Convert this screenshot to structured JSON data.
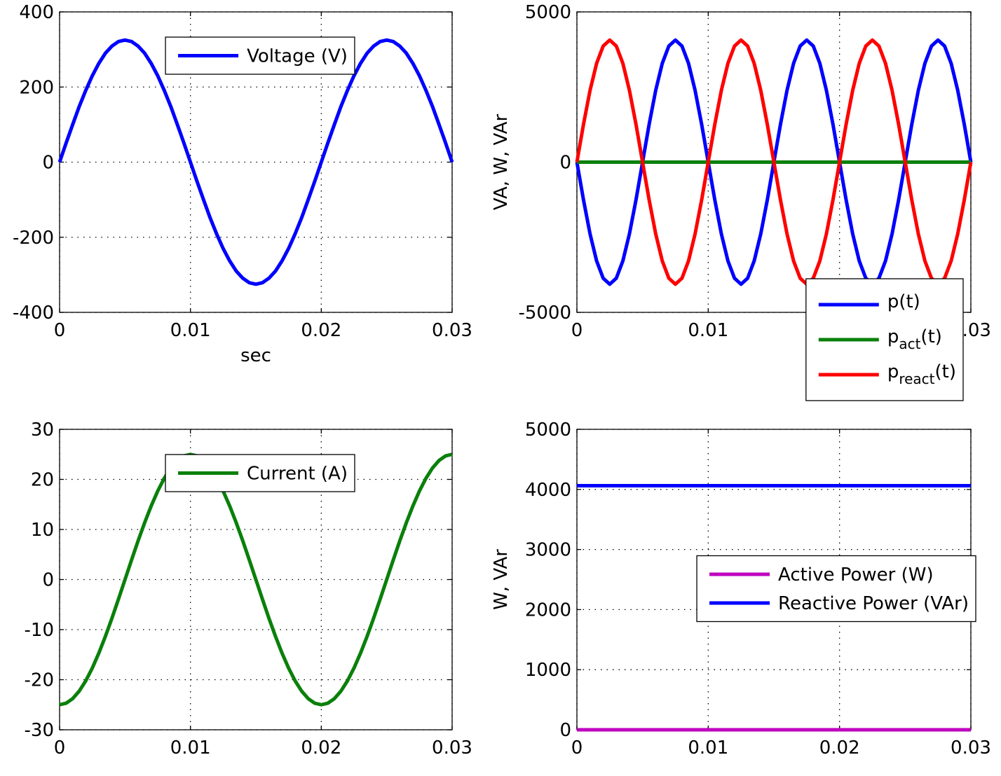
{
  "chart_data": [
    {
      "type": "line",
      "xlabel": "sec",
      "legend": "north",
      "grid": true,
      "xlim": [
        0,
        0.03
      ],
      "xticks": [
        0,
        0.01,
        0.02,
        0.03
      ],
      "ylim": [
        -400,
        400
      ],
      "yticks": [
        -400,
        -200,
        0,
        200,
        400
      ],
      "x": [
        0,
        0.0005,
        0.001,
        0.0015,
        0.002,
        0.0025,
        0.003,
        0.0035,
        0.004,
        0.0045,
        0.005,
        0.0055,
        0.006,
        0.0065,
        0.007,
        0.0075,
        0.008,
        0.0085,
        0.009,
        0.0095,
        0.01,
        0.0105,
        0.011,
        0.0115,
        0.012,
        0.0125,
        0.013,
        0.0135,
        0.014,
        0.0145,
        0.015,
        0.0155,
        0.016,
        0.0165,
        0.017,
        0.0175,
        0.018,
        0.0185,
        0.019,
        0.0195,
        0.02,
        0.0205,
        0.021,
        0.0215,
        0.022,
        0.0225,
        0.023,
        0.0235,
        0.024,
        0.0245,
        0.025,
        0.0255,
        0.026,
        0.0265,
        0.027,
        0.0275,
        0.028,
        0.0285,
        0.029,
        0.0295,
        0.03
      ],
      "series": [
        {
          "name": "Voltage (V)",
          "color": "#0000ff",
          "values": [
            0,
            51,
            100,
            148,
            191,
            230,
            263,
            290,
            309,
            321,
            325,
            321,
            309,
            290,
            263,
            230,
            191,
            148,
            100,
            51,
            0,
            -51,
            -100,
            -148,
            -191,
            -230,
            -263,
            -290,
            -309,
            -321,
            -325,
            -321,
            -309,
            -290,
            -263,
            -230,
            -191,
            -148,
            -100,
            -51,
            0,
            51,
            100,
            148,
            191,
            230,
            263,
            290,
            309,
            321,
            325,
            321,
            309,
            290,
            263,
            230,
            191,
            148,
            100,
            51,
            0
          ]
        }
      ]
    },
    {
      "type": "line",
      "ylabel": "VA, W, VAr",
      "legend": "southeast",
      "grid": true,
      "xlim": [
        0,
        0.03
      ],
      "xticks": [
        0,
        0.01,
        0.02,
        0.03
      ],
      "ylim": [
        -5000,
        5000
      ],
      "yticks": [
        -5000,
        0,
        5000
      ],
      "x": [
        0,
        0.0005,
        0.001,
        0.0015,
        0.002,
        0.0025,
        0.003,
        0.0035,
        0.004,
        0.0045,
        0.005,
        0.0055,
        0.006,
        0.0065,
        0.007,
        0.0075,
        0.008,
        0.0085,
        0.009,
        0.0095,
        0.01,
        0.0105,
        0.011,
        0.0115,
        0.012,
        0.0125,
        0.013,
        0.0135,
        0.014,
        0.0145,
        0.015,
        0.0155,
        0.016,
        0.0165,
        0.017,
        0.0175,
        0.018,
        0.0185,
        0.019,
        0.0195,
        0.02,
        0.0205,
        0.021,
        0.0215,
        0.022,
        0.0225,
        0.023,
        0.0235,
        0.024,
        0.0245,
        0.025,
        0.0255,
        0.026,
        0.0265,
        0.027,
        0.0275,
        0.028,
        0.0285,
        0.029,
        0.0295,
        0.03
      ],
      "series": [
        {
          "name": "p(t)",
          "color": "#0000ff",
          "values": [
            0,
            -1255,
            -2388,
            -3287,
            -3864,
            -4063,
            -3864,
            -3287,
            -2388,
            -1255,
            0,
            1255,
            2388,
            3287,
            3864,
            4063,
            3864,
            3287,
            2388,
            1255,
            0,
            -1255,
            -2388,
            -3287,
            -3864,
            -4063,
            -3864,
            -3287,
            -2388,
            -1255,
            0,
            1255,
            2388,
            3287,
            3864,
            4063,
            3864,
            3287,
            2388,
            1255,
            0,
            -1255,
            -2388,
            -3287,
            -3864,
            -4063,
            -3864,
            -3287,
            -2388,
            -1255,
            0,
            1255,
            2388,
            3287,
            3864,
            4063,
            3864,
            3287,
            2388,
            1255,
            0
          ]
        },
        {
          "name": "p_{act}(t)",
          "color": "#0a800a",
          "values": [
            0,
            0,
            0,
            0,
            0,
            0,
            0,
            0,
            0,
            0,
            0,
            0,
            0,
            0,
            0,
            0,
            0,
            0,
            0,
            0,
            0,
            0,
            0,
            0,
            0,
            0,
            0,
            0,
            0,
            0,
            0,
            0,
            0,
            0,
            0,
            0,
            0,
            0,
            0,
            0,
            0,
            0,
            0,
            0,
            0,
            0,
            0,
            0,
            0,
            0,
            0,
            0,
            0,
            0,
            0,
            0,
            0,
            0,
            0,
            0,
            0
          ]
        },
        {
          "name": "p_{react}(t)",
          "color": "#ff0000",
          "values": [
            0,
            1255,
            2388,
            3287,
            3864,
            4063,
            3864,
            3287,
            2388,
            1255,
            0,
            -1255,
            -2388,
            -3287,
            -3864,
            -4063,
            -3864,
            -3287,
            -2388,
            -1255,
            0,
            1255,
            2388,
            3287,
            3864,
            4063,
            3864,
            3287,
            2388,
            1255,
            0,
            -1255,
            -2388,
            -3287,
            -3864,
            -4063,
            -3864,
            -3287,
            -2388,
            -1255,
            0,
            1255,
            2388,
            3287,
            3864,
            4063,
            3864,
            3287,
            2388,
            1255,
            0,
            -1255,
            -2388,
            -3287,
            -3864,
            -4063,
            -3864,
            -3287,
            -2388,
            -1255,
            0
          ]
        }
      ]
    },
    {
      "type": "line",
      "legend": "north",
      "grid": true,
      "xlim": [
        0,
        0.03
      ],
      "xticks": [
        0,
        0.01,
        0.02,
        0.03
      ],
      "ylim": [
        -30,
        30
      ],
      "yticks": [
        -30,
        -20,
        -10,
        0,
        10,
        20,
        30
      ],
      "x": [
        0,
        0.0005,
        0.001,
        0.0015,
        0.002,
        0.0025,
        0.003,
        0.0035,
        0.004,
        0.0045,
        0.005,
        0.0055,
        0.006,
        0.0065,
        0.007,
        0.0075,
        0.008,
        0.0085,
        0.009,
        0.0095,
        0.01,
        0.0105,
        0.011,
        0.0115,
        0.012,
        0.0125,
        0.013,
        0.0135,
        0.014,
        0.0145,
        0.015,
        0.0155,
        0.016,
        0.0165,
        0.017,
        0.0175,
        0.018,
        0.0185,
        0.019,
        0.0195,
        0.02,
        0.0205,
        0.021,
        0.0215,
        0.022,
        0.0225,
        0.023,
        0.0235,
        0.024,
        0.0245,
        0.025,
        0.0255,
        0.026,
        0.0265,
        0.027,
        0.0275,
        0.028,
        0.0285,
        0.029,
        0.0295,
        0.03
      ],
      "series": [
        {
          "name": "Current (A)",
          "color": "#0a800a",
          "values": [
            -25,
            -24.69,
            -23.78,
            -22.28,
            -20.23,
            -17.68,
            -14.69,
            -11.35,
            -7.73,
            -3.91,
            0,
            3.91,
            7.73,
            11.35,
            14.69,
            17.68,
            20.23,
            22.28,
            23.78,
            24.69,
            25,
            24.69,
            23.78,
            22.28,
            20.23,
            17.68,
            14.69,
            11.35,
            7.73,
            3.91,
            0,
            -3.91,
            -7.73,
            -11.35,
            -14.69,
            -17.68,
            -20.23,
            -22.28,
            -23.78,
            -24.69,
            -25,
            -24.69,
            -23.78,
            -22.28,
            -20.23,
            -17.68,
            -14.69,
            -11.35,
            -7.73,
            -3.91,
            0,
            3.91,
            7.73,
            11.35,
            14.69,
            17.68,
            20.23,
            22.28,
            23.78,
            24.69,
            25
          ]
        }
      ]
    },
    {
      "type": "line",
      "ylabel": "W, VAr",
      "legend": "east",
      "grid": true,
      "xlim": [
        0,
        0.03
      ],
      "xticks": [
        0,
        0.01,
        0.02,
        0.03
      ],
      "ylim": [
        0,
        5000
      ],
      "yticks": [
        0,
        1000,
        2000,
        3000,
        4000,
        5000
      ],
      "x": [
        0,
        0.03
      ],
      "series": [
        {
          "name": "Active Power (W)",
          "color": "#bf00bf",
          "values": [
            0,
            0
          ]
        },
        {
          "name": "Reactive Power (VAr)",
          "color": "#0000ff",
          "values": [
            4062.5,
            4062.5
          ]
        }
      ]
    }
  ]
}
